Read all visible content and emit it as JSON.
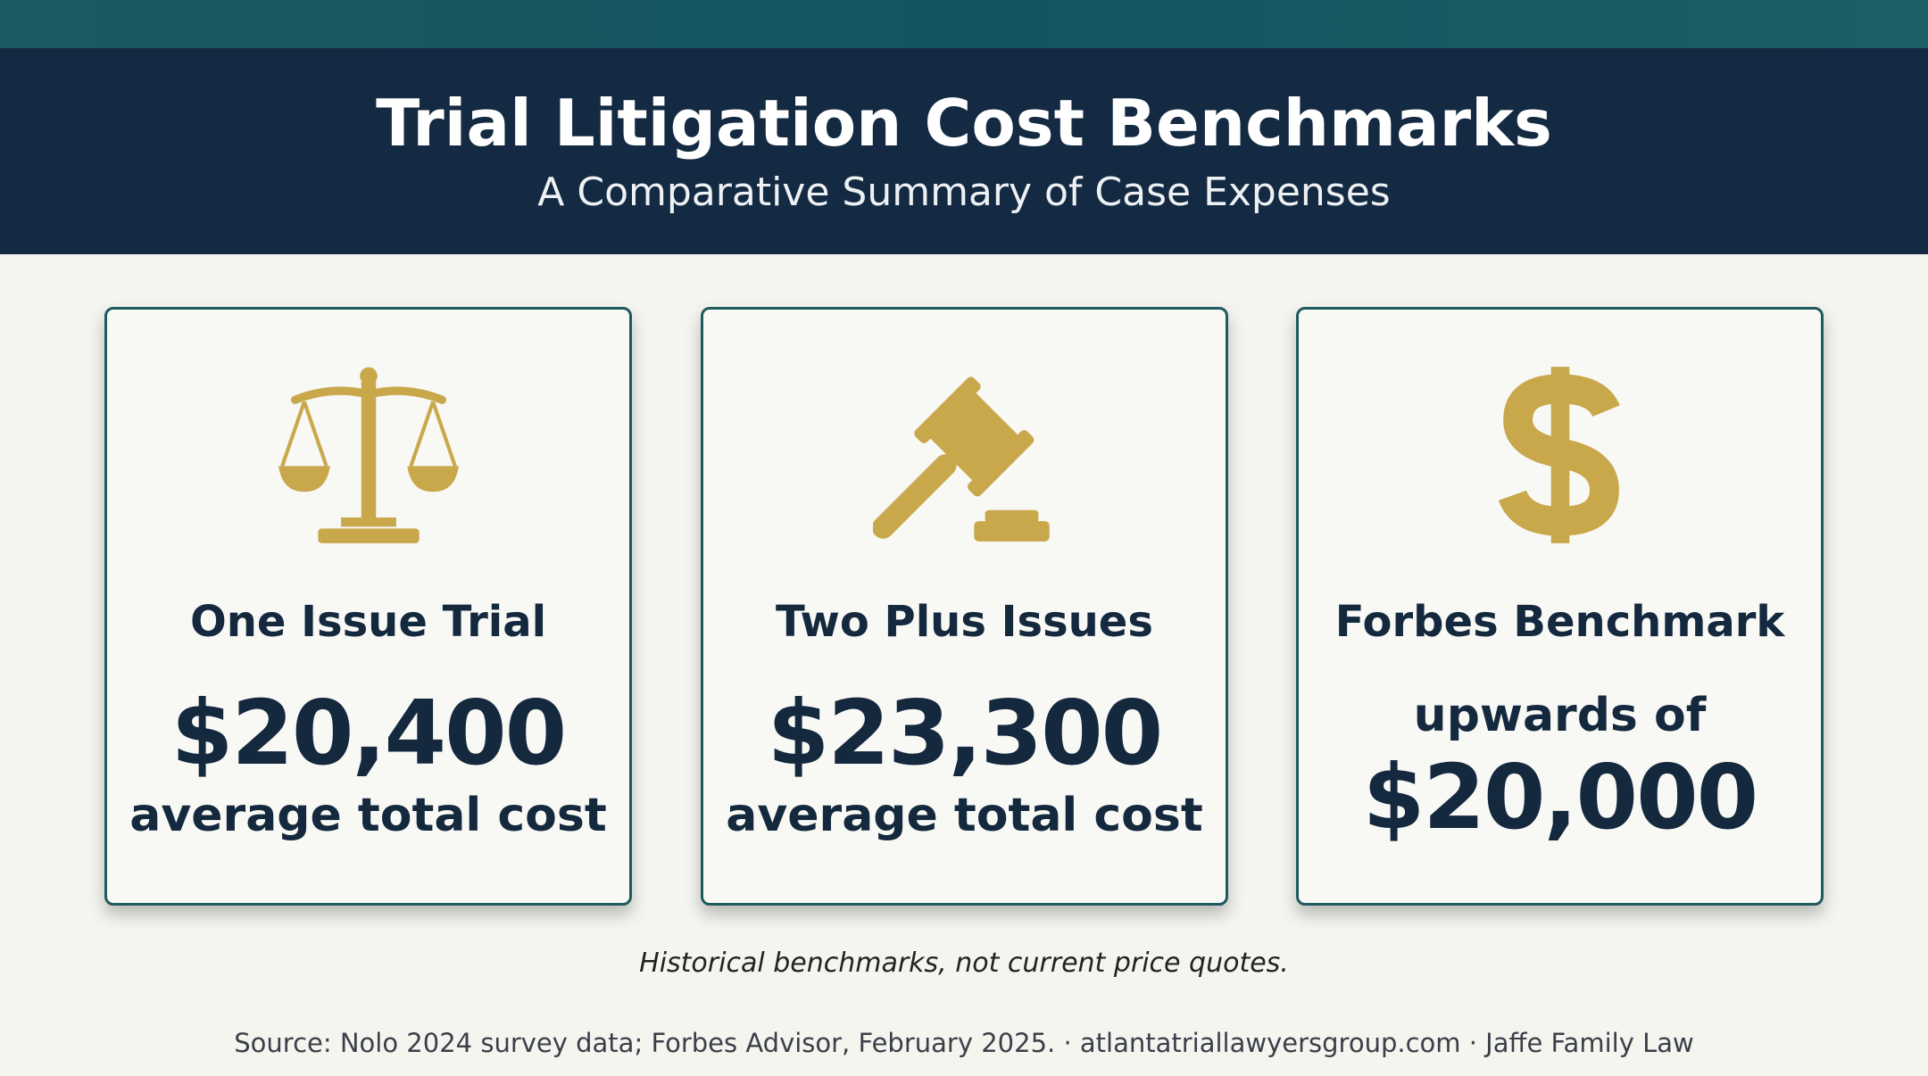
{
  "header": {
    "title": "Trial Litigation Cost Benchmarks",
    "subtitle": "A Comparative Summary of Case Expenses"
  },
  "cards": [
    {
      "title": "One Issue Trial",
      "amount": "$20,400",
      "caption": "average total cost"
    },
    {
      "title": "Two Plus Issues",
      "amount": "$23,300",
      "caption": "average total cost"
    },
    {
      "title": "Forbes Benchmark",
      "prefix": "upwards of",
      "amount": "$20,000"
    }
  ],
  "footnote": "Historical benchmarks, not current price quotes.",
  "source": "Source: Nolo 2024 survey data; Forbes Advisor, February 2025. · atlantatriallawyersgroup.com · Jaffe Family Law"
}
